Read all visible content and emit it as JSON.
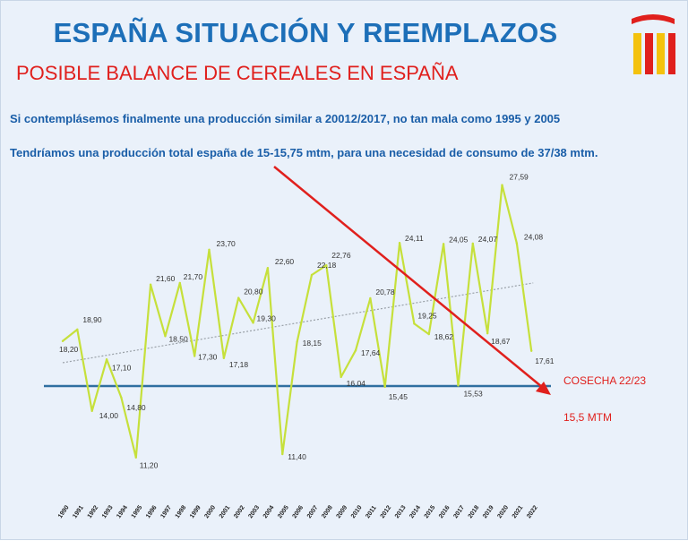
{
  "header": {
    "title": "ESPAÑA SITUACIÓN Y REEMPLAZOS",
    "subtitle": "POSIBLE BALANCE DE CEREALES EN ESPAÑA",
    "line1": "Si contemplásemos finalmente una producción similar a 20012/2017, no tan mala como 1995 y 2005",
    "line2": "Tendríamos una producción total españa de 15-15,75 mtm, para una necesidad de consumo de 37/38 mtm."
  },
  "logo": {
    "icon": "spain-flag-bars-icon",
    "colors": [
      "#e0201d",
      "#f4c20d"
    ]
  },
  "colors": {
    "series": "#c6e03b",
    "trend": "#9aa1a8",
    "baseline": "#2f6fa0",
    "arrow": "#e0201d",
    "annotation": "#e0201d",
    "title": "#1d6fb8"
  },
  "chart_data": {
    "type": "line",
    "x": [
      "1990",
      "1991",
      "1992",
      "1993",
      "1994",
      "1995",
      "1996",
      "1997",
      "1998",
      "1999",
      "2000",
      "2001",
      "2002",
      "2003",
      "2004",
      "2005",
      "2006",
      "2007",
      "2008",
      "2009",
      "2010",
      "2011",
      "2012",
      "2013",
      "2014",
      "2015",
      "2016",
      "2017",
      "2018",
      "2019",
      "2020",
      "2021",
      "2022"
    ],
    "series": [
      {
        "values": [
          18.2,
          18.9,
          14.0,
          17.1,
          14.8,
          11.2,
          21.6,
          18.5,
          21.7,
          17.3,
          23.7,
          17.18,
          20.8,
          19.3,
          22.6,
          11.4,
          18.15,
          22.18,
          22.76,
          16.04,
          17.64,
          20.78,
          15.45,
          24.11,
          19.25,
          18.62,
          24.05,
          15.53,
          24.07,
          18.67,
          27.59,
          24.08,
          17.61
        ],
        "labels": [
          "18,20",
          "18,90",
          "14,00",
          "17,10",
          "14,80",
          "11,20",
          "21,60",
          "18,50",
          "21,70",
          "17,30",
          "23,70",
          "17,18",
          "20,80",
          "19,30",
          "22,60",
          "11,40",
          "18,15",
          "22,18",
          "22,76",
          "16,04",
          "17,64",
          "20,78",
          "15,45",
          "24,11",
          "19,25",
          "18,62",
          "24,05",
          "15,53",
          "24,07",
          "18,67",
          "27,59",
          "24,08",
          "17,61"
        ]
      }
    ],
    "trend": {
      "start": 16.9,
      "end": 21.7
    },
    "baseline": 15.5,
    "ylim": [
      10,
      28
    ],
    "grid": false,
    "annotations": {
      "label1": "COSECHA 22/23",
      "label2": "15,5 MTM"
    }
  }
}
